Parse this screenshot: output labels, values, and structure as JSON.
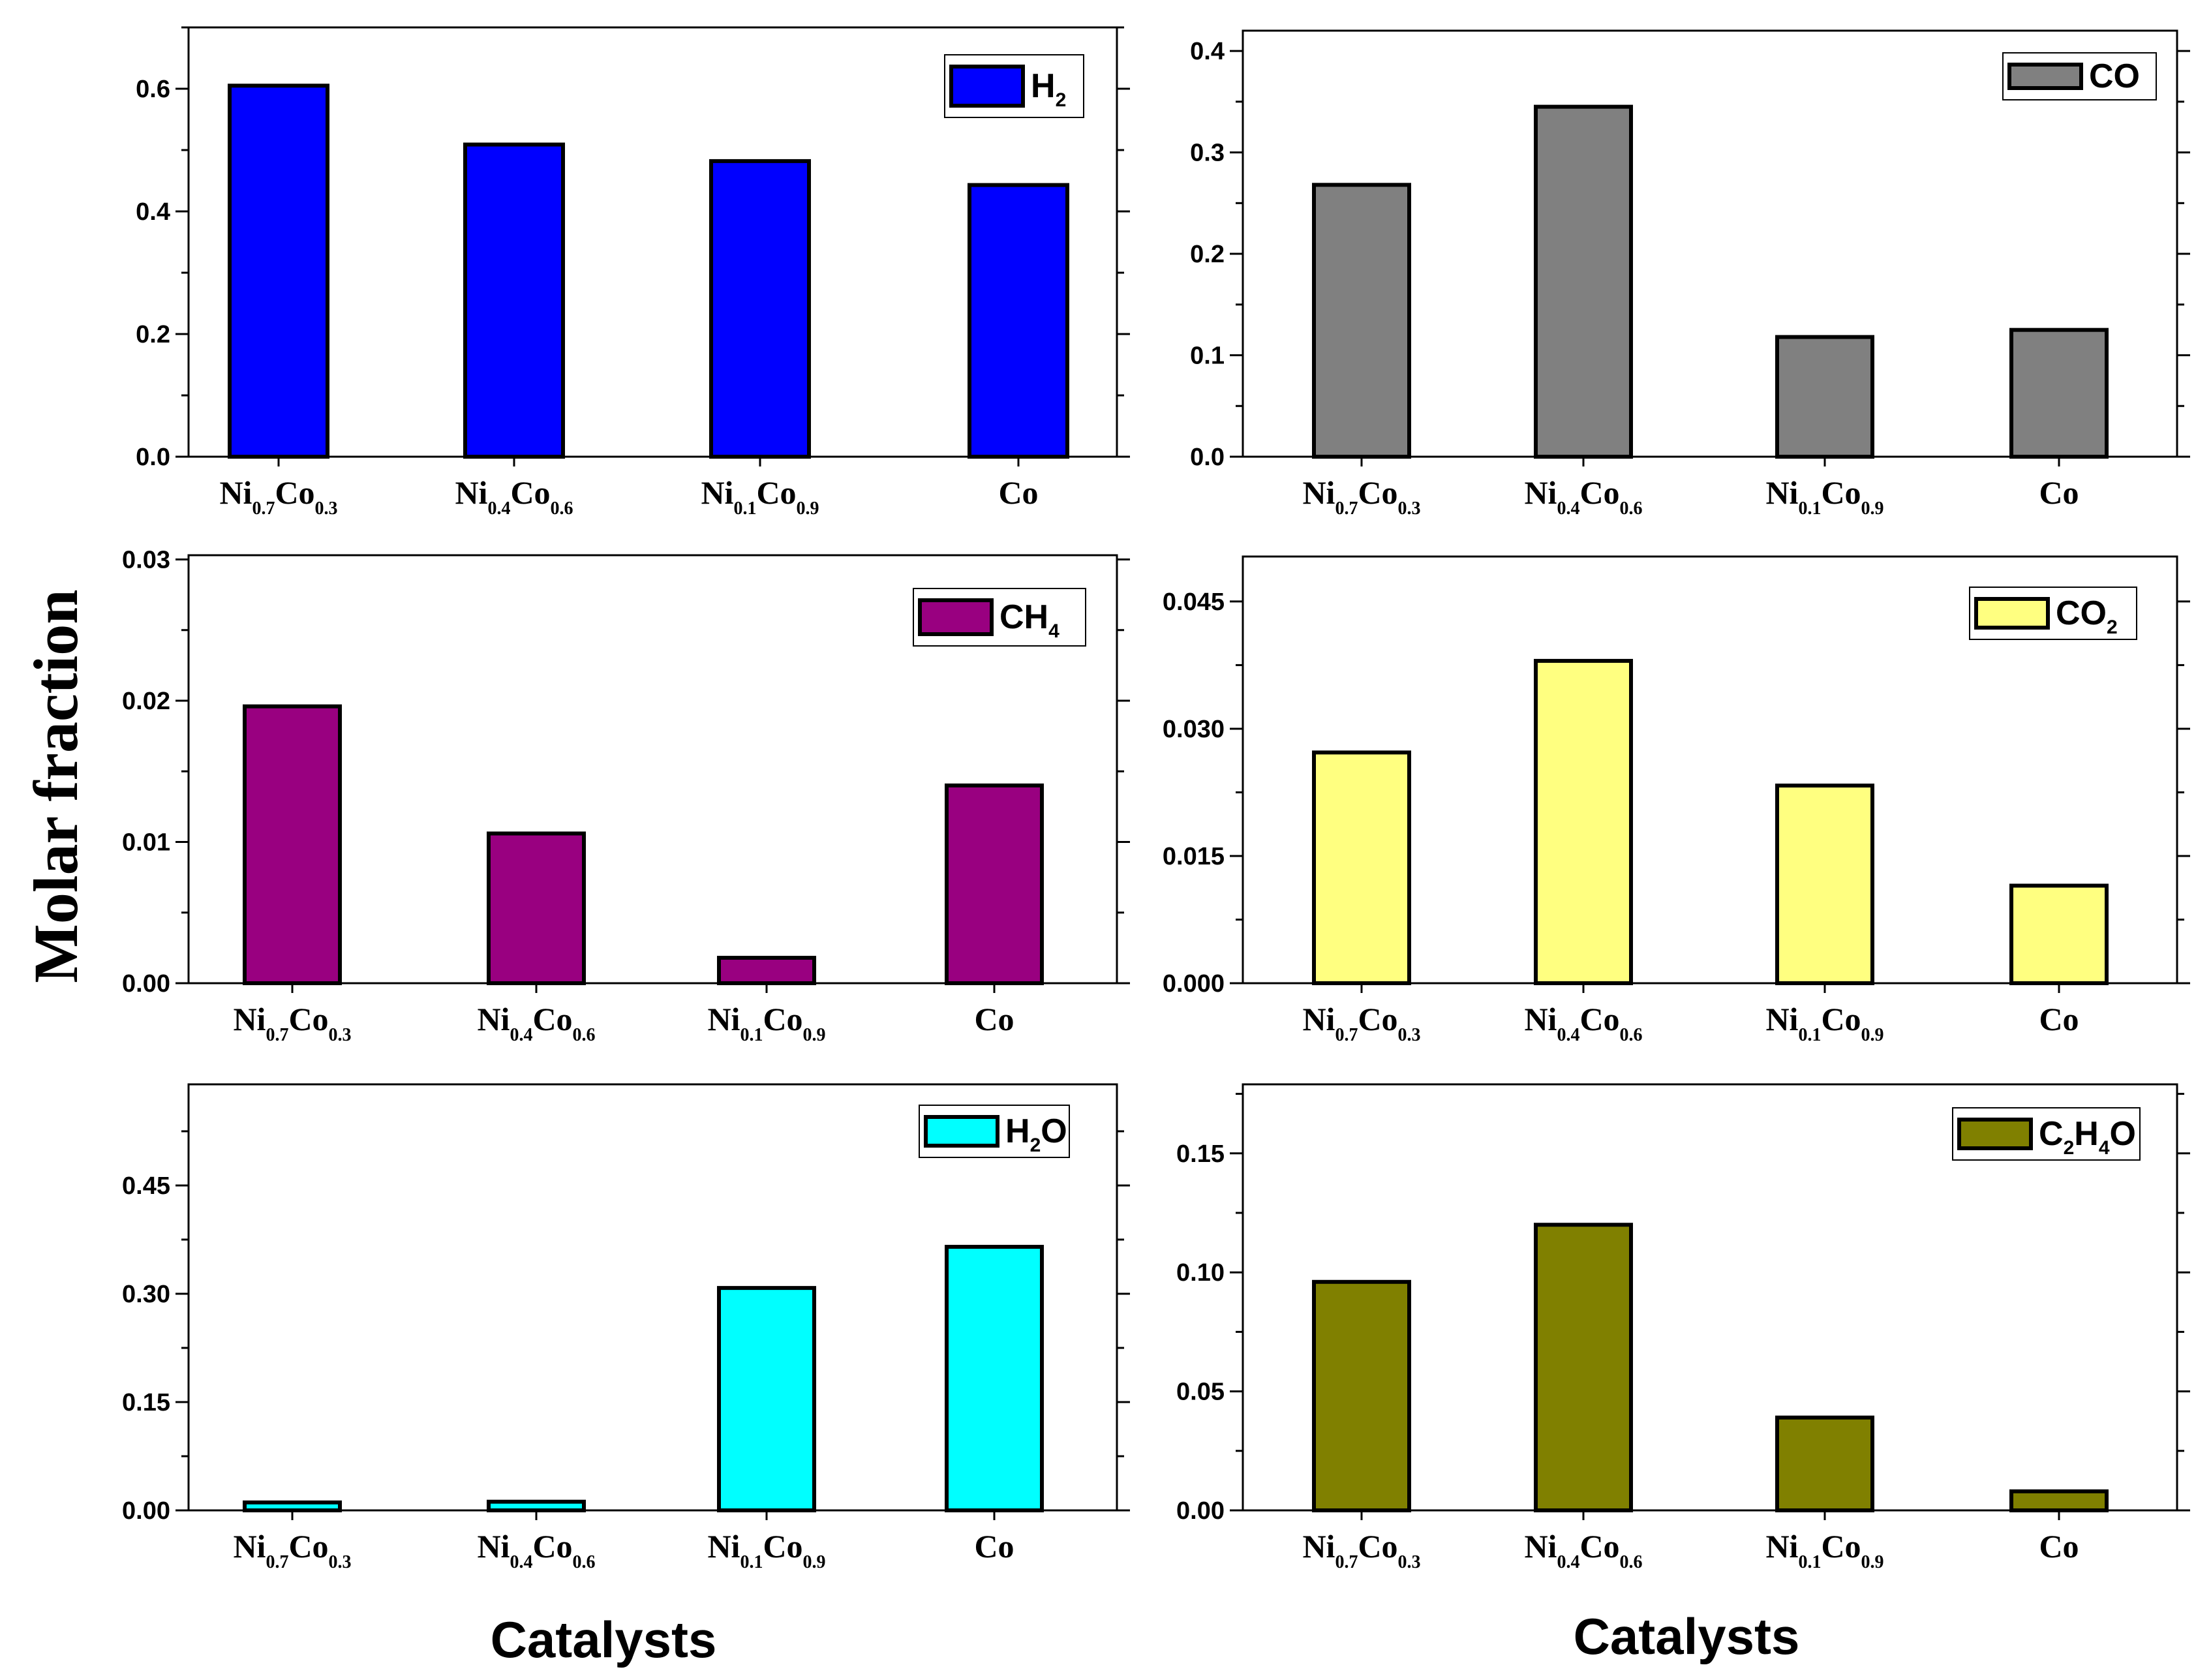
{
  "ylabel": "Molar fraction",
  "xlabels": [
    "Catalysts",
    "Catalysts"
  ],
  "chart_data": [
    {
      "type": "bar",
      "title": "",
      "xlabel": "Catalysts",
      "ylabel": "Molar fraction",
      "legend": {
        "base": "H",
        "sub": "2",
        "tail": "",
        "placement": "top-right"
      },
      "categories": [
        {
          "base": "Ni",
          "s1": "0.7",
          "mid": "Co",
          "s2": "0.3"
        },
        {
          "base": "Ni",
          "s1": "0.4",
          "mid": "Co",
          "s2": "0.6"
        },
        {
          "base": "Ni",
          "s1": "0.1",
          "mid": "Co",
          "s2": "0.9"
        },
        {
          "base": "Co",
          "s1": "",
          "mid": "",
          "s2": ""
        }
      ],
      "values": [
        0.605,
        0.509,
        0.482,
        0.443
      ],
      "ylim": [
        0,
        0.7
      ],
      "ticks": [
        "0.0",
        "0.2",
        "0.4",
        "0.6"
      ],
      "color": "#0000ff"
    },
    {
      "type": "bar",
      "title": "",
      "xlabel": "Catalysts",
      "ylabel": "Molar fraction",
      "legend": {
        "base": "CO",
        "sub": "",
        "tail": "",
        "placement": "top-right"
      },
      "categories": [
        {
          "base": "Ni",
          "s1": "0.7",
          "mid": "Co",
          "s2": "0.3"
        },
        {
          "base": "Ni",
          "s1": "0.4",
          "mid": "Co",
          "s2": "0.6"
        },
        {
          "base": "Ni",
          "s1": "0.1",
          "mid": "Co",
          "s2": "0.9"
        },
        {
          "base": "Co",
          "s1": "",
          "mid": "",
          "s2": ""
        }
      ],
      "values": [
        0.268,
        0.345,
        0.118,
        0.125
      ],
      "ylim": [
        0,
        0.42
      ],
      "ticks": [
        "0.0",
        "0.1",
        "0.2",
        "0.3",
        "0.4"
      ],
      "color": "#808080"
    },
    {
      "type": "bar",
      "title": "",
      "xlabel": "Catalysts",
      "ylabel": "Molar fraction",
      "legend": {
        "base": "CH",
        "sub": "4",
        "tail": "",
        "placement": "top-right"
      },
      "categories": [
        {
          "base": "Ni",
          "s1": "0.7",
          "mid": "Co",
          "s2": "0.3"
        },
        {
          "base": "Ni",
          "s1": "0.4",
          "mid": "Co",
          "s2": "0.6"
        },
        {
          "base": "Ni",
          "s1": "0.1",
          "mid": "Co",
          "s2": "0.9"
        },
        {
          "base": "Co",
          "s1": "",
          "mid": "",
          "s2": ""
        }
      ],
      "values": [
        0.0196,
        0.0106,
        0.0018,
        0.014
      ],
      "ylim": [
        0,
        0.0303
      ],
      "ticks": [
        "0.00",
        "0.01",
        "0.02",
        "0.03"
      ],
      "color": "#990080"
    },
    {
      "type": "bar",
      "title": "",
      "xlabel": "Catalysts",
      "ylabel": "Molar fraction",
      "legend": {
        "base": "CO",
        "sub": "2",
        "tail": "",
        "placement": "top-right"
      },
      "categories": [
        {
          "base": "Ni",
          "s1": "0.7",
          "mid": "Co",
          "s2": "0.3"
        },
        {
          "base": "Ni",
          "s1": "0.4",
          "mid": "Co",
          "s2": "0.6"
        },
        {
          "base": "Ni",
          "s1": "0.1",
          "mid": "Co",
          "s2": "0.9"
        },
        {
          "base": "Co",
          "s1": "",
          "mid": "",
          "s2": ""
        }
      ],
      "values": [
        0.0272,
        0.038,
        0.0233,
        0.0115
      ],
      "ylim": [
        0,
        0.0503
      ],
      "ticks": [
        "0.000",
        "0.015",
        "0.030",
        "0.045"
      ],
      "color": "#ffff80"
    },
    {
      "type": "bar",
      "title": "",
      "xlabel": "Catalysts",
      "ylabel": "Molar fraction",
      "legend": {
        "base": "H",
        "sub": "2",
        "tail": "O",
        "placement": "top-right"
      },
      "categories": [
        {
          "base": "Ni",
          "s1": "0.7",
          "mid": "Co",
          "s2": "0.3"
        },
        {
          "base": "Ni",
          "s1": "0.4",
          "mid": "Co",
          "s2": "0.6"
        },
        {
          "base": "Ni",
          "s1": "0.1",
          "mid": "Co",
          "s2": "0.9"
        },
        {
          "base": "Co",
          "s1": "",
          "mid": "",
          "s2": ""
        }
      ],
      "values": [
        0.011,
        0.012,
        0.308,
        0.365
      ],
      "ylim": [
        0,
        0.59
      ],
      "ticks": [
        "0.00",
        "0.15",
        "0.30",
        "0.45"
      ],
      "color": "#00ffff"
    },
    {
      "type": "bar",
      "title": "",
      "xlabel": "Catalysts",
      "ylabel": "Molar fraction",
      "legend": {
        "base": "C",
        "sub": "2",
        "tail": "H",
        "sub2": "4",
        "tail2": "O",
        "placement": "top-right"
      },
      "categories": [
        {
          "base": "Ni",
          "s1": "0.7",
          "mid": "Co",
          "s2": "0.3"
        },
        {
          "base": "Ni",
          "s1": "0.4",
          "mid": "Co",
          "s2": "0.6"
        },
        {
          "base": "Ni",
          "s1": "0.1",
          "mid": "Co",
          "s2": "0.9"
        },
        {
          "base": "Co",
          "s1": "",
          "mid": "",
          "s2": ""
        }
      ],
      "values": [
        0.096,
        0.12,
        0.039,
        0.008
      ],
      "ylim": [
        0,
        0.179
      ],
      "ticks": [
        "0.00",
        "0.05",
        "0.10",
        "0.15"
      ],
      "color": "#808000"
    }
  ]
}
